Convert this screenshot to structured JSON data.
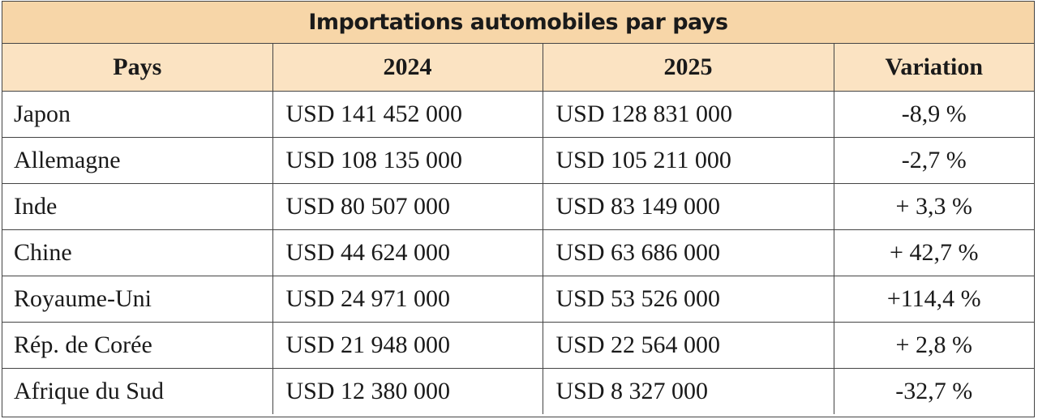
{
  "title": "Importations automobiles par pays",
  "headers": [
    "Pays",
    "2024",
    "2025",
    "Variation"
  ],
  "rows": [
    {
      "country": "Japon",
      "y2024": "USD 141 452 000",
      "y2025": "USD 128 831 000",
      "variation": "-8,9 %"
    },
    {
      "country": "Allemagne",
      "y2024": "USD 108 135 000",
      "y2025": "USD 105 211 000",
      "variation": "-2,7 %"
    },
    {
      "country": "Inde",
      "y2024": "USD 80 507 000",
      "y2025": "USD 83 149 000",
      "variation": "+ 3,3 %"
    },
    {
      "country": "Chine",
      "y2024": "USD 44 624 000",
      "y2025": "USD 63 686 000",
      "variation": "+ 42,7 %"
    },
    {
      "country": "Royaume-Uni",
      "y2024": "USD 24 971 000",
      "y2025": "USD 53 526 000",
      "variation": "+114,4 %"
    },
    {
      "country": "Rép. de Corée",
      "y2024": "USD 21 948 000",
      "y2025": "USD 22 564 000",
      "variation": "+ 2,8 %"
    },
    {
      "country": "Afrique du Sud",
      "y2024": "USD 12 380 000",
      "y2025": "USD 8 327 000",
      "variation": "-32,7 %"
    }
  ],
  "colors": {
    "title_bg": "#f7d6a8",
    "header_bg": "#fbe3c2",
    "border": "#444444"
  }
}
